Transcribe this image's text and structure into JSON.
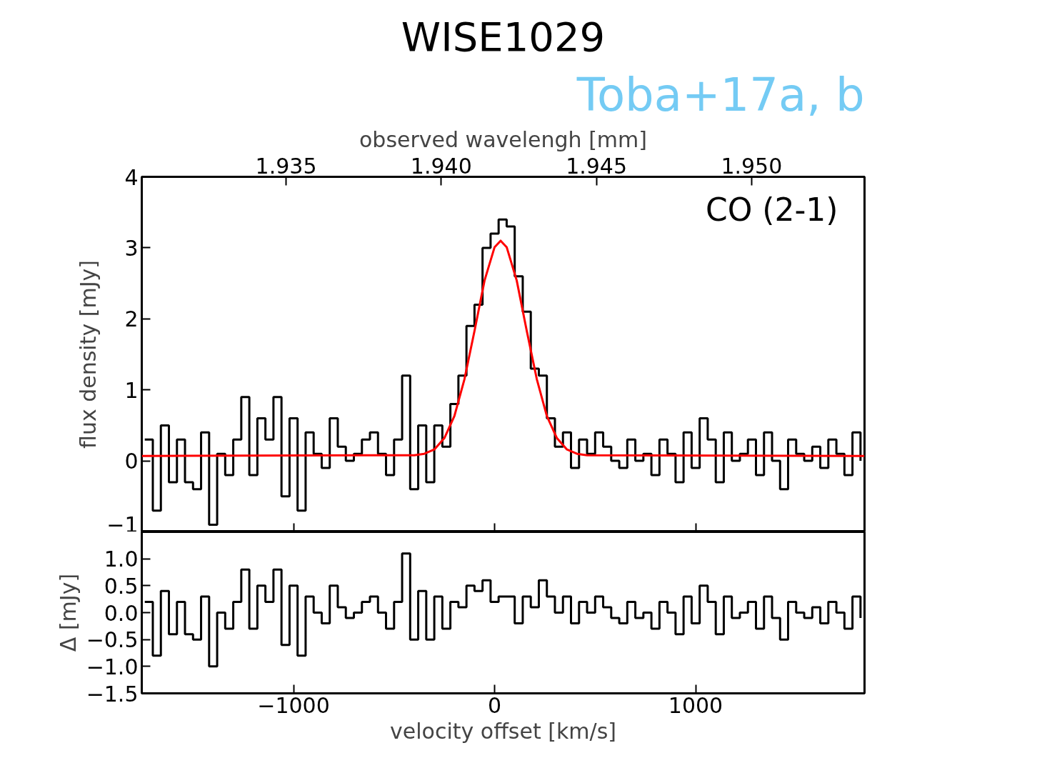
{
  "chart_data": [
    {
      "type": "step",
      "title": "WISE1029",
      "subtitle": "Toba+17a, b",
      "ylabel": "flux density [mJy]",
      "x2label": "observed wavelengh [mm]",
      "xlim": [
        -1755,
        1840
      ],
      "xticks": [
        -1000,
        0,
        1000
      ],
      "x2lim": [
        1.93035,
        1.95364
      ],
      "x2ticks": [
        1.935,
        {
          "value": 1.94,
          "label": "1.940"
        },
        1.945,
        {
          "value": 1.95,
          "label": "1.950"
        }
      ],
      "ylim": [
        -1,
        4
      ],
      "yticks": [
        {
          "value": -1,
          "label": "−1"
        },
        0,
        1,
        2,
        3,
        4
      ],
      "tick_labels": "y",
      "annotations": [
        "CO (2-1)"
      ],
      "x": [
        -1740,
        -1700,
        -1660,
        -1620,
        -1580,
        -1540,
        -1500,
        -1460,
        -1420,
        -1380,
        -1340,
        -1300,
        -1260,
        -1220,
        -1180,
        -1140,
        -1100,
        -1060,
        -1020,
        -980,
        -940,
        -900,
        -860,
        -820,
        -780,
        -740,
        -700,
        -660,
        -620,
        -580,
        -540,
        -500,
        -460,
        -420,
        -380,
        -340,
        -300,
        -260,
        -220,
        -180,
        -140,
        -100,
        -60,
        -20,
        20,
        60,
        100,
        140,
        180,
        220,
        260,
        300,
        340,
        380,
        420,
        460,
        500,
        540,
        580,
        620,
        660,
        700,
        740,
        780,
        820,
        860,
        900,
        940,
        980,
        1020,
        1060,
        1100,
        1140,
        1180,
        1220,
        1260,
        1300,
        1340,
        1380,
        1420,
        1460,
        1500,
        1540,
        1580,
        1620,
        1660,
        1700,
        1740,
        1780,
        1820
      ],
      "series": [
        {
          "color": "#000000",
          "values": [
            0.3,
            -0.7,
            0.5,
            -0.3,
            0.3,
            -0.3,
            -0.4,
            0.4,
            -0.9,
            0.1,
            -0.2,
            0.3,
            0.9,
            -0.2,
            0.6,
            0.3,
            0.9,
            -0.5,
            0.6,
            -0.7,
            0.4,
            0.1,
            -0.1,
            0.6,
            0.2,
            0.0,
            0.1,
            0.3,
            0.4,
            0.1,
            -0.2,
            0.3,
            1.2,
            -0.4,
            0.5,
            -0.3,
            0.5,
            0.2,
            0.8,
            1.2,
            1.9,
            2.2,
            3.0,
            3.2,
            3.4,
            3.3,
            2.6,
            2.1,
            1.3,
            1.2,
            0.6,
            0.2,
            0.4,
            -0.1,
            0.3,
            0.1,
            0.4,
            0.2,
            0.0,
            -0.1,
            0.3,
            0.0,
            0.1,
            -0.2,
            0.3,
            0.1,
            -0.3,
            0.4,
            -0.1,
            0.6,
            0.3,
            -0.3,
            0.4,
            0.0,
            0.1,
            0.3,
            -0.2,
            0.4,
            0.0,
            -0.4,
            0.3,
            0.1,
            0.0,
            0.2,
            -0.1,
            0.3,
            0.1,
            -0.2,
            0.4,
            0.0
          ]
        },
        {
          "type": "line",
          "color": "#ff0000",
          "x": [
            -1755,
            -400,
            -350,
            -300,
            -250,
            -200,
            -150,
            -100,
            -50,
            0,
            30,
            60,
            110,
            160,
            210,
            260,
            310,
            360,
            410,
            460,
            1840
          ],
          "values": [
            0.07,
            0.08,
            0.1,
            0.16,
            0.32,
            0.63,
            1.15,
            1.83,
            2.54,
            3.01,
            3.1,
            3.01,
            2.54,
            1.83,
            1.15,
            0.63,
            0.32,
            0.16,
            0.1,
            0.08,
            0.07
          ]
        }
      ]
    },
    {
      "type": "step",
      "xlabel": "velocity offset [km/s]",
      "ylabel": "Δ [mJy]",
      "xlim": [
        -1755,
        1840
      ],
      "xticks": [
        {
          "value": -1000,
          "label": "−1000"
        },
        0,
        1000
      ],
      "ylim": [
        -1.5,
        1.5
      ],
      "yticks": [
        {
          "value": -1.5,
          "label": "−1.5"
        },
        {
          "value": -1,
          "label": "−1.0"
        },
        {
          "value": -0.5,
          "label": "−0.5"
        },
        {
          "value": 0,
          "label": "0.0"
        },
        {
          "value": 0.5,
          "label": "0.5"
        },
        {
          "value": 1,
          "label": "1.0"
        }
      ],
      "x": [
        -1740,
        -1700,
        -1660,
        -1620,
        -1580,
        -1540,
        -1500,
        -1460,
        -1420,
        -1380,
        -1340,
        -1300,
        -1260,
        -1220,
        -1180,
        -1140,
        -1100,
        -1060,
        -1020,
        -980,
        -940,
        -900,
        -860,
        -820,
        -780,
        -740,
        -700,
        -660,
        -620,
        -580,
        -540,
        -500,
        -460,
        -420,
        -380,
        -340,
        -300,
        -260,
        -220,
        -180,
        -140,
        -100,
        -60,
        -20,
        20,
        60,
        100,
        140,
        180,
        220,
        260,
        300,
        340,
        380,
        420,
        460,
        500,
        540,
        580,
        620,
        660,
        700,
        740,
        780,
        820,
        860,
        900,
        940,
        980,
        1020,
        1060,
        1100,
        1140,
        1180,
        1220,
        1260,
        1300,
        1340,
        1380,
        1420,
        1460,
        1500,
        1540,
        1580,
        1620,
        1660,
        1700,
        1740,
        1780,
        1820
      ],
      "series": [
        {
          "color": "#000000",
          "values": [
            0.2,
            -0.8,
            0.4,
            -0.4,
            0.2,
            -0.4,
            -0.5,
            0.3,
            -1.0,
            0.0,
            -0.3,
            0.2,
            0.8,
            -0.3,
            0.5,
            0.2,
            0.8,
            -0.6,
            0.5,
            -0.8,
            0.3,
            0.0,
            -0.2,
            0.5,
            0.1,
            -0.1,
            0.0,
            0.2,
            0.3,
            0.0,
            -0.3,
            0.2,
            1.1,
            -0.5,
            0.4,
            -0.5,
            0.3,
            -0.3,
            0.2,
            0.1,
            0.5,
            0.4,
            0.6,
            0.2,
            0.3,
            0.3,
            -0.2,
            0.3,
            0.1,
            0.6,
            0.3,
            0.0,
            0.3,
            -0.2,
            0.2,
            0.0,
            0.3,
            0.1,
            -0.1,
            -0.2,
            0.2,
            -0.1,
            0.0,
            -0.3,
            0.2,
            0.0,
            -0.4,
            0.3,
            -0.2,
            0.5,
            0.2,
            -0.4,
            0.3,
            -0.1,
            0.0,
            0.2,
            -0.3,
            0.3,
            -0.1,
            -0.5,
            0.2,
            0.0,
            -0.1,
            0.1,
            -0.2,
            0.2,
            0.0,
            -0.3,
            0.3,
            -0.1
          ]
        }
      ]
    }
  ]
}
